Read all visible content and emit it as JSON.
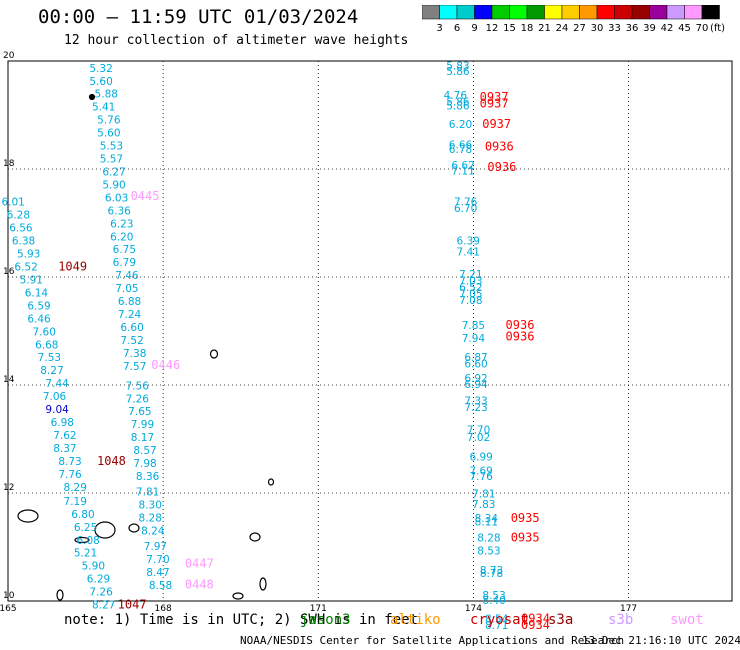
{
  "header": {
    "title": "00:00 – 11:59 UTC 01/03/2024",
    "subtitle": "12 hour collection of altimeter wave heights"
  },
  "colorbar": {
    "unit": "(ft)",
    "ticks": [
      "3",
      "6",
      "9",
      "12",
      "15",
      "18",
      "21",
      "24",
      "27",
      "30",
      "33",
      "36",
      "39",
      "42",
      "45",
      "70"
    ],
    "colors": [
      "#808080",
      "#00ffff",
      "#00cccc",
      "#0000ff",
      "#00cc00",
      "#00ff00",
      "#009900",
      "#ffff00",
      "#ffcc00",
      "#ff9900",
      "#ff0000",
      "#cc0000",
      "#990000",
      "#990099",
      "#cc99ff",
      "#ff99ff",
      "#000000"
    ]
  },
  "footer": {
    "note": "note: 1) Time is in UTC; 2) SWH is in feet",
    "satellites": [
      {
        "name": "jason3",
        "color": "#008000"
      },
      {
        "name": "altiko",
        "color": "#ff9900"
      },
      {
        "name": "cryosat",
        "color": "#cc0000"
      },
      {
        "name": "s3a",
        "color": "#990000"
      },
      {
        "name": "s3b",
        "color": "#cc99ff"
      },
      {
        "name": "swot",
        "color": "#ff99ff"
      }
    ],
    "credit": "NOAA/NESDIS Center for Satellite Applications and Research",
    "timestamp": "13 Dec 21:16:10 UTC 2024"
  },
  "chart_data": {
    "type": "scatter",
    "title": "00:00 – 11:59 UTC 01/03/2024",
    "subtitle": "12 hour collection of altimeter wave heights",
    "xlim": [
      165,
      179
    ],
    "ylim": [
      10,
      20
    ],
    "x_ticks": [
      "165",
      "168",
      "171",
      "174",
      "177"
    ],
    "y_ticks": [
      "10",
      "12",
      "14",
      "16",
      "18",
      "20"
    ],
    "grid": true,
    "tracks": [
      {
        "name": "swot-track-1",
        "color": "#ff99ff",
        "points": [
          {
            "x": 166.8,
            "y": 19.8,
            "v": "5.32"
          },
          {
            "x": 166.8,
            "y": 19.56,
            "v": "5.60"
          },
          {
            "x": 166.9,
            "y": 19.32,
            "v": "5.88"
          },
          {
            "x": 166.85,
            "y": 19.08,
            "v": "5.41"
          },
          {
            "x": 166.95,
            "y": 18.84,
            "v": "5.76"
          },
          {
            "x": 166.95,
            "y": 18.6,
            "v": "5.60"
          },
          {
            "x": 167.0,
            "y": 18.36,
            "v": "5.53"
          },
          {
            "x": 167.0,
            "y": 18.12,
            "v": "5.57"
          },
          {
            "x": 167.05,
            "y": 17.88,
            "v": "6.27"
          },
          {
            "x": 167.05,
            "y": 17.64,
            "v": "5.90"
          },
          {
            "x": 167.1,
            "y": 17.4,
            "v": "6.03"
          },
          {
            "x": 167.15,
            "y": 17.16,
            "v": "6.36"
          },
          {
            "x": 167.2,
            "y": 16.92,
            "v": "6.23"
          },
          {
            "x": 167.2,
            "y": 16.68,
            "v": "6.20"
          },
          {
            "x": 167.25,
            "y": 16.44,
            "v": "6.75"
          },
          {
            "x": 167.25,
            "y": 16.2,
            "v": "6.79"
          },
          {
            "x": 167.3,
            "y": 15.96,
            "v": "7.46"
          },
          {
            "x": 167.3,
            "y": 15.72,
            "v": "7.05"
          },
          {
            "x": 167.35,
            "y": 15.48,
            "v": "6.88"
          },
          {
            "x": 167.35,
            "y": 15.24,
            "v": "7.24"
          },
          {
            "x": 167.4,
            "y": 15.0,
            "v": "6.60"
          },
          {
            "x": 167.4,
            "y": 14.76,
            "v": "7.52"
          },
          {
            "x": 167.45,
            "y": 14.52,
            "v": "7.38"
          },
          {
            "x": 167.45,
            "y": 14.28,
            "v": "7.57"
          },
          {
            "x": 167.5,
            "y": 13.92,
            "v": "7.56"
          },
          {
            "x": 167.5,
            "y": 13.68,
            "v": "7.26"
          },
          {
            "x": 167.55,
            "y": 13.44,
            "v": "7.65"
          },
          {
            "x": 167.6,
            "y": 13.2,
            "v": "7.99"
          },
          {
            "x": 167.6,
            "y": 12.96,
            "v": "8.17"
          },
          {
            "x": 167.65,
            "y": 12.72,
            "v": "8.57"
          },
          {
            "x": 167.65,
            "y": 12.48,
            "v": "7.98"
          },
          {
            "x": 167.7,
            "y": 12.24,
            "v": "8.36"
          },
          {
            "x": 167.7,
            "y": 11.95,
            "v": "7.81"
          },
          {
            "x": 167.75,
            "y": 11.71,
            "v": "8.30"
          },
          {
            "x": 167.75,
            "y": 11.47,
            "v": "8.28"
          },
          {
            "x": 167.8,
            "y": 11.23,
            "v": "8.24"
          },
          {
            "x": 167.85,
            "y": 10.94,
            "v": "7.97"
          },
          {
            "x": 167.9,
            "y": 10.7,
            "v": "7.70"
          },
          {
            "x": 167.9,
            "y": 10.46,
            "v": "8.47"
          },
          {
            "x": 167.95,
            "y": 10.22,
            "v": "8.58"
          }
        ],
        "time_labels": [
          {
            "x": 167.65,
            "y": 17.43,
            "t": "0445",
            "color": "#ff99ff"
          },
          {
            "x": 168.05,
            "y": 14.3,
            "t": "0446",
            "color": "#ff99ff"
          },
          {
            "x": 168.7,
            "y": 10.62,
            "t": "0447",
            "color": "#ff99ff"
          },
          {
            "x": 168.7,
            "y": 10.23,
            "t": "0448",
            "color": "#ff99ff"
          }
        ]
      },
      {
        "name": "s3a-track-1",
        "color": "#990000",
        "points": [
          {
            "x": 165.1,
            "y": 17.32,
            "v": "6.01"
          },
          {
            "x": 165.2,
            "y": 17.08,
            "v": "6.28"
          },
          {
            "x": 165.25,
            "y": 16.84,
            "v": "6.56"
          },
          {
            "x": 165.3,
            "y": 16.6,
            "v": "6.38"
          },
          {
            "x": 165.4,
            "y": 16.36,
            "v": "5.93"
          },
          {
            "x": 165.35,
            "y": 16.12,
            "v": "6.52"
          },
          {
            "x": 165.45,
            "y": 15.88,
            "v": "5.91"
          },
          {
            "x": 165.55,
            "y": 15.64,
            "v": "6.14"
          },
          {
            "x": 165.6,
            "y": 15.4,
            "v": "6.59"
          },
          {
            "x": 165.6,
            "y": 15.16,
            "v": "6.46"
          },
          {
            "x": 165.7,
            "y": 14.92,
            "v": "7.60"
          },
          {
            "x": 165.75,
            "y": 14.68,
            "v": "6.68"
          },
          {
            "x": 165.8,
            "y": 14.44,
            "v": "7.53"
          },
          {
            "x": 165.85,
            "y": 14.2,
            "v": "8.27"
          },
          {
            "x": 165.95,
            "y": 13.96,
            "v": "7.44"
          },
          {
            "x": 165.9,
            "y": 13.72,
            "v": "7.06"
          },
          {
            "x": 165.95,
            "y": 13.48,
            "v": "9.04"
          },
          {
            "x": 166.05,
            "y": 13.24,
            "v": "6.98"
          },
          {
            "x": 166.1,
            "y": 13.0,
            "v": "7.62"
          },
          {
            "x": 166.1,
            "y": 12.76,
            "v": "8.37"
          },
          {
            "x": 166.2,
            "y": 12.52,
            "v": "8.73"
          },
          {
            "x": 166.2,
            "y": 12.28,
            "v": "7.76"
          },
          {
            "x": 166.3,
            "y": 12.04,
            "v": "8.29"
          },
          {
            "x": 166.3,
            "y": 11.78,
            "v": "7.19"
          },
          {
            "x": 166.45,
            "y": 11.54,
            "v": "6.80"
          },
          {
            "x": 166.5,
            "y": 11.3,
            "v": "6.25"
          },
          {
            "x": 166.55,
            "y": 11.06,
            "v": "6.08"
          },
          {
            "x": 166.5,
            "y": 10.82,
            "v": "5.21"
          },
          {
            "x": 166.65,
            "y": 10.58,
            "v": "5.90"
          },
          {
            "x": 166.75,
            "y": 10.34,
            "v": "6.29"
          },
          {
            "x": 166.8,
            "y": 10.1,
            "v": "7.26"
          },
          {
            "x": 166.85,
            "y": 9.86,
            "v": "8.27"
          }
        ],
        "time_labels": [
          {
            "x": 166.25,
            "y": 16.12,
            "t": "1049",
            "color": "#990000"
          },
          {
            "x": 167.0,
            "y": 12.52,
            "t": "1048",
            "color": "#990000"
          },
          {
            "x": 167.4,
            "y": 9.86,
            "t": "1047",
            "color": "#990000"
          }
        ]
      },
      {
        "name": "cryosat-track-1",
        "color": "#ff0000",
        "points": [
          {
            "x": 173.7,
            "y": 19.84,
            "v": "5.83"
          },
          {
            "x": 173.7,
            "y": 19.74,
            "v": "5.86"
          },
          {
            "x": 173.65,
            "y": 19.3,
            "v": "4.76"
          },
          {
            "x": 173.7,
            "y": 19.18,
            "v": "5.86"
          },
          {
            "x": 173.7,
            "y": 19.1,
            "v": "5.86"
          },
          {
            "x": 173.75,
            "y": 18.76,
            "v": "6.20"
          },
          {
            "x": 173.75,
            "y": 18.38,
            "v": "6.66"
          },
          {
            "x": 173.75,
            "y": 18.3,
            "v": "6.78"
          },
          {
            "x": 173.8,
            "y": 18.0,
            "v": "6.62"
          },
          {
            "x": 173.8,
            "y": 17.9,
            "v": "7.11"
          },
          {
            "x": 173.85,
            "y": 17.32,
            "v": "7.76"
          },
          {
            "x": 173.85,
            "y": 17.2,
            "v": "6.70"
          },
          {
            "x": 173.9,
            "y": 16.6,
            "v": "6.39"
          },
          {
            "x": 173.9,
            "y": 16.4,
            "v": "7.41"
          },
          {
            "x": 173.95,
            "y": 15.98,
            "v": "7.21"
          },
          {
            "x": 173.95,
            "y": 15.86,
            "v": "7.03"
          },
          {
            "x": 173.95,
            "y": 15.74,
            "v": "6.52"
          },
          {
            "x": 173.95,
            "y": 15.62,
            "v": "7.05"
          },
          {
            "x": 173.95,
            "y": 15.5,
            "v": "7.08"
          },
          {
            "x": 174.0,
            "y": 15.04,
            "v": "7.85"
          },
          {
            "x": 174.0,
            "y": 14.8,
            "v": "7.94"
          },
          {
            "x": 174.05,
            "y": 14.44,
            "v": "6.87"
          },
          {
            "x": 174.05,
            "y": 14.32,
            "v": "6.60"
          },
          {
            "x": 174.05,
            "y": 14.06,
            "v": "6.92"
          },
          {
            "x": 174.05,
            "y": 13.94,
            "v": "6.94"
          }
        ],
        "time_labels": [
          {
            "x": 174.4,
            "y": 19.26,
            "t": "0937",
            "color": "#ff0000"
          },
          {
            "x": 174.4,
            "y": 19.14,
            "t": "0937",
            "color": "#ff0000"
          },
          {
            "x": 174.45,
            "y": 18.76,
            "t": "0937",
            "color": "#ff0000"
          },
          {
            "x": 174.5,
            "y": 18.34,
            "t": "0936",
            "color": "#ff0000"
          },
          {
            "x": 174.55,
            "y": 17.96,
            "t": "0936",
            "color": "#ff0000"
          },
          {
            "x": 174.9,
            "y": 15.04,
            "t": "0936",
            "color": "#ff0000"
          },
          {
            "x": 174.9,
            "y": 14.82,
            "t": "0936",
            "color": "#ff0000"
          }
        ]
      },
      {
        "name": "cryosat-track-2",
        "color": "#ff0000",
        "points": [
          {
            "x": 174.05,
            "y": 13.64,
            "v": "7.33"
          },
          {
            "x": 174.05,
            "y": 13.52,
            "v": "7.23"
          },
          {
            "x": 174.1,
            "y": 13.1,
            "v": "7.70"
          },
          {
            "x": 174.1,
            "y": 12.96,
            "v": "7.02"
          },
          {
            "x": 174.15,
            "y": 12.6,
            "v": "6.99"
          },
          {
            "x": 174.15,
            "y": 12.34,
            "v": "7.69"
          },
          {
            "x": 174.15,
            "y": 12.24,
            "v": "7.76"
          },
          {
            "x": 174.2,
            "y": 11.92,
            "v": "7.81"
          },
          {
            "x": 174.2,
            "y": 11.72,
            "v": "7.83"
          },
          {
            "x": 174.25,
            "y": 11.46,
            "v": "8.34"
          },
          {
            "x": 174.25,
            "y": 11.4,
            "v": "8.11"
          },
          {
            "x": 174.3,
            "y": 11.1,
            "v": "8.28"
          },
          {
            "x": 174.3,
            "y": 10.86,
            "v": "8.53"
          },
          {
            "x": 174.35,
            "y": 10.5,
            "v": "8.73"
          },
          {
            "x": 174.35,
            "y": 10.44,
            "v": "8.78"
          },
          {
            "x": 174.4,
            "y": 10.04,
            "v": "8.53"
          },
          {
            "x": 174.4,
            "y": 9.94,
            "v": "8.40"
          },
          {
            "x": 174.45,
            "y": 9.6,
            "v": "8.54"
          },
          {
            "x": 174.45,
            "y": 9.48,
            "v": "8.71"
          }
        ],
        "time_labels": [
          {
            "x": 175.0,
            "y": 11.46,
            "t": "0935",
            "color": "#ff0000"
          },
          {
            "x": 175.0,
            "y": 11.1,
            "t": "0935",
            "color": "#ff0000"
          },
          {
            "x": 175.2,
            "y": 9.6,
            "t": "0934",
            "color": "#ff0000"
          },
          {
            "x": 175.2,
            "y": 9.48,
            "t": "0934",
            "color": "#ff0000"
          }
        ]
      }
    ]
  }
}
